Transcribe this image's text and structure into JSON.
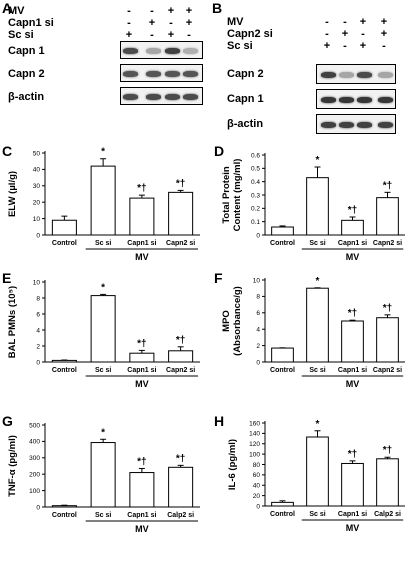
{
  "panels": {
    "A": {
      "letter": "A",
      "rows": [
        {
          "label": "MV",
          "signs": [
            "-",
            "-",
            "+",
            "+"
          ]
        },
        {
          "label": "Capn1 si",
          "signs": [
            "-",
            "+",
            "-",
            "+"
          ]
        },
        {
          "label": "Sc si",
          "signs": [
            "+",
            "-",
            "+",
            "-"
          ]
        }
      ],
      "blots": [
        {
          "label": "Capn 1",
          "intensity": [
            0.8,
            0.35,
            0.85,
            0.3
          ]
        },
        {
          "label": "Capn 2",
          "intensity": [
            0.75,
            0.75,
            0.75,
            0.75
          ]
        },
        {
          "label": "β-actin",
          "intensity": [
            0.8,
            0.8,
            0.8,
            0.8
          ]
        }
      ]
    },
    "B": {
      "letter": "B",
      "rows": [
        {
          "label": "MV",
          "signs": [
            "-",
            "-",
            "+",
            "+"
          ]
        },
        {
          "label": "Capn2 si",
          "signs": [
            "-",
            "+",
            "-",
            "+"
          ]
        },
        {
          "label": "Sc si",
          "signs": [
            "+",
            "-",
            "+",
            "-"
          ]
        }
      ],
      "blots": [
        {
          "label": "Capn 2",
          "intensity": [
            0.85,
            0.35,
            0.8,
            0.35
          ]
        },
        {
          "label": "Capn 1",
          "intensity": [
            0.9,
            0.9,
            0.9,
            0.9
          ]
        },
        {
          "label": "β-actin",
          "intensity": [
            0.85,
            0.85,
            0.85,
            0.85
          ]
        }
      ]
    }
  },
  "chart_data": [
    {
      "id": "C",
      "letter": "C",
      "type": "bar",
      "ylabel": "ELW (µl/g)",
      "ylim": [
        0,
        50
      ],
      "yticks": [
        0,
        10,
        20,
        30,
        40,
        50
      ],
      "categories": [
        "Control",
        "Sc si",
        "Capn1 si",
        "Capn2 si"
      ],
      "values": [
        9,
        42,
        22.5,
        26
      ],
      "errors": [
        2.5,
        4.5,
        1.8,
        1.2
      ],
      "annotations": [
        "",
        "*",
        "*†",
        "*†"
      ],
      "group_label": "MV"
    },
    {
      "id": "D",
      "letter": "D",
      "type": "bar",
      "ylabel": "Total Protein Content (mg/ml)",
      "ylim": [
        0,
        0.6
      ],
      "yticks": [
        0,
        0.1,
        0.2,
        0.3,
        0.4,
        0.5,
        0.6
      ],
      "categories": [
        "Control",
        "Sc si",
        "Capn1 si",
        "Capn2 si"
      ],
      "values": [
        0.06,
        0.43,
        0.11,
        0.28
      ],
      "errors": [
        0.008,
        0.08,
        0.025,
        0.04
      ],
      "annotations": [
        "",
        "*",
        "*†",
        "*†"
      ],
      "group_label": "MV"
    },
    {
      "id": "E",
      "letter": "E",
      "type": "bar",
      "ylabel": "BAL PMNs (10⁵)",
      "ylim": [
        0,
        10
      ],
      "yticks": [
        0,
        2,
        4,
        6,
        8,
        10
      ],
      "categories": [
        "Control",
        "Sc si",
        "Capn1 si",
        "Capn2 si"
      ],
      "values": [
        0.2,
        8.3,
        1.1,
        1.4
      ],
      "errors": [
        0.05,
        0.15,
        0.35,
        0.5
      ],
      "annotations": [
        "",
        "*",
        "*†",
        "*†"
      ],
      "group_label": "MV"
    },
    {
      "id": "F",
      "letter": "F",
      "type": "bar",
      "ylabel": "MPO (Absorbance/g)",
      "ylim": [
        0,
        10
      ],
      "yticks": [
        0,
        2,
        4,
        6,
        8,
        10
      ],
      "categories": [
        "Control",
        "Sc si",
        "Capn1 si",
        "Capn2 si"
      ],
      "values": [
        1.7,
        9,
        5,
        5.4
      ],
      "errors": [
        0.03,
        0.05,
        0.1,
        0.35
      ],
      "annotations": [
        "",
        "*",
        "*†",
        "*†"
      ],
      "group_label": "MV"
    },
    {
      "id": "G",
      "letter": "G",
      "type": "bar",
      "ylabel": "TNF-α (pg/ml)",
      "ylim": [
        0,
        500
      ],
      "yticks": [
        0,
        100,
        200,
        300,
        400,
        500
      ],
      "categories": [
        "Control",
        "Sc si",
        "Capn1 si",
        "Calp2 si"
      ],
      "values": [
        8,
        393,
        210,
        242
      ],
      "errors": [
        3,
        20,
        25,
        12
      ],
      "annotations": [
        "",
        "*",
        "*†",
        "*†"
      ],
      "group_label": "MV"
    },
    {
      "id": "H",
      "letter": "H",
      "type": "bar",
      "ylabel": "IL-6 (pg/ml)",
      "ylim": [
        0,
        160
      ],
      "yticks": [
        0,
        20,
        40,
        60,
        80,
        100,
        120,
        140,
        160
      ],
      "categories": [
        "Control",
        "Sc si",
        "Capn1 si",
        "Calp2 si"
      ],
      "values": [
        7,
        133,
        82,
        91
      ],
      "errors": [
        3,
        12,
        5,
        3
      ],
      "annotations": [
        "",
        "*",
        "*†",
        "*†"
      ],
      "group_label": "MV"
    }
  ]
}
